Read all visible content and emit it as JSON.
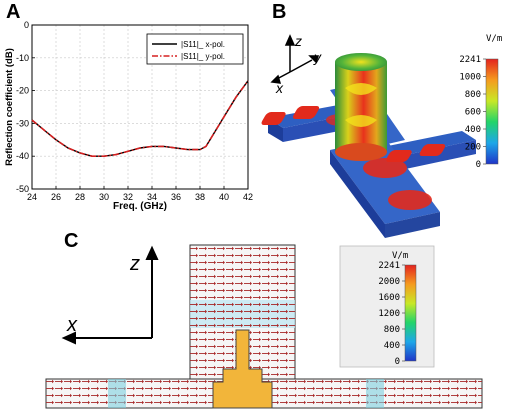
{
  "panels": {
    "a": "A",
    "b": "B",
    "c": "C"
  },
  "chart_data": {
    "type": "line",
    "ylabel": "Reflection coefficient (dB)",
    "xlabel": "Freq. (GHz)",
    "xlim": [
      24,
      42
    ],
    "ylim": [
      -50,
      0
    ],
    "xticks": [
      24,
      26,
      28,
      30,
      32,
      34,
      36,
      38,
      40,
      42
    ],
    "yticks": [
      0,
      -10,
      -20,
      -30,
      -40,
      -50
    ],
    "grid": true,
    "legend_position": "top-right",
    "series": [
      {
        "name": "|S11|_ x-pol.",
        "color": "#000000",
        "dash": "solid",
        "x": [
          24,
          25,
          26,
          27,
          28,
          29,
          30,
          31,
          32,
          33,
          34,
          35,
          36,
          37,
          38,
          38.5,
          39,
          40,
          41,
          42
        ],
        "y": [
          -29,
          -32,
          -35,
          -37.5,
          -39,
          -40,
          -40,
          -39.5,
          -38.5,
          -37.5,
          -37,
          -37,
          -37.5,
          -38,
          -38,
          -37,
          -34,
          -28,
          -22,
          -17
        ]
      },
      {
        "name": "|S11|_ y-pol.",
        "color": "#d62020",
        "dash": "dashdot",
        "x": [
          24,
          25,
          26,
          27,
          28,
          29,
          30,
          31,
          32,
          33,
          34,
          35,
          36,
          37,
          38,
          38.5,
          39,
          40,
          41,
          42
        ],
        "y": [
          -29,
          -32,
          -35,
          -37.5,
          -39,
          -40,
          -40,
          -39.5,
          -38.5,
          -37.5,
          -37,
          -37,
          -37.5,
          -38,
          -38,
          -37,
          -34,
          -28,
          -22,
          -17
        ]
      }
    ]
  },
  "panel_b": {
    "axes": {
      "z": "z",
      "y": "y",
      "x": "x"
    },
    "colorbar": {
      "unit": "V/m",
      "ticks": [
        "2241",
        "1000",
        "800",
        "600",
        "400",
        "200",
        "0"
      ]
    }
  },
  "panel_c": {
    "axes": {
      "z": "z",
      "x": "x"
    },
    "colorbar": {
      "unit": "V/m",
      "ticks": [
        "2241",
        "2000",
        "1600",
        "1200",
        "800",
        "400",
        "0"
      ]
    }
  }
}
